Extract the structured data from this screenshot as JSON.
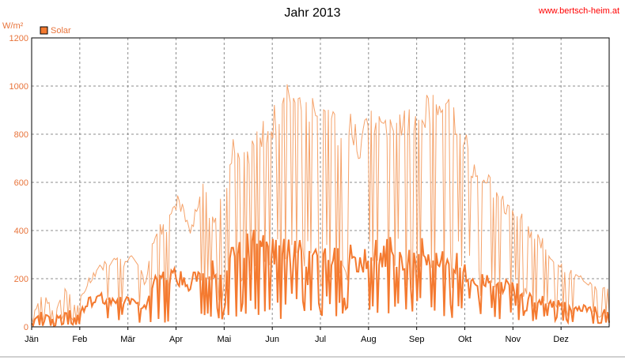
{
  "chart_data": {
    "type": "line",
    "title": "Jahr 2013",
    "website": "www.bertsch-heim.at",
    "ylabel": "W/m²",
    "ylim": [
      0,
      1200
    ],
    "yticks": [
      0,
      200,
      400,
      600,
      800,
      1000,
      1200
    ],
    "x_tick_labels": [
      "Jän",
      "Feb",
      "Mär",
      "Apr",
      "Mai",
      "Jun",
      "Jul",
      "Aug",
      "Sep",
      "Okt",
      "Nov",
      "Dez"
    ],
    "grid": true,
    "legend_position": "top-left",
    "colors": {
      "line_max": "#f5a36b",
      "line_mean": "#f47a30",
      "grid": "#8c8c8c",
      "frame": "#000000"
    },
    "series": [
      {
        "name": "Solar",
        "max_envelope": [
          40,
          150,
          60,
          170,
          90,
          200,
          260,
          300,
          280,
          320,
          200,
          430,
          450,
          580,
          400,
          620,
          480,
          630,
          820,
          760,
          860,
          900,
          950,
          1080,
          990,
          1010,
          960,
          860,
          920,
          800,
          950,
          880,
          950,
          900,
          930,
          980,
          1010,
          940,
          870,
          700,
          660,
          600,
          540,
          500,
          420,
          380,
          320,
          260,
          230,
          200,
          170,
          160
        ],
        "mean_daily": [
          15,
          60,
          30,
          70,
          40,
          100,
          120,
          110,
          120,
          100,
          80,
          200,
          190,
          210,
          170,
          250,
          230,
          270,
          300,
          330,
          340,
          300,
          320,
          310,
          300,
          290,
          320,
          280,
          300,
          260,
          320,
          300,
          320,
          270,
          300,
          320,
          300,
          280,
          250,
          200,
          190,
          180,
          170,
          150,
          130,
          110,
          100,
          90,
          80,
          75,
          70,
          65
        ]
      }
    ]
  }
}
